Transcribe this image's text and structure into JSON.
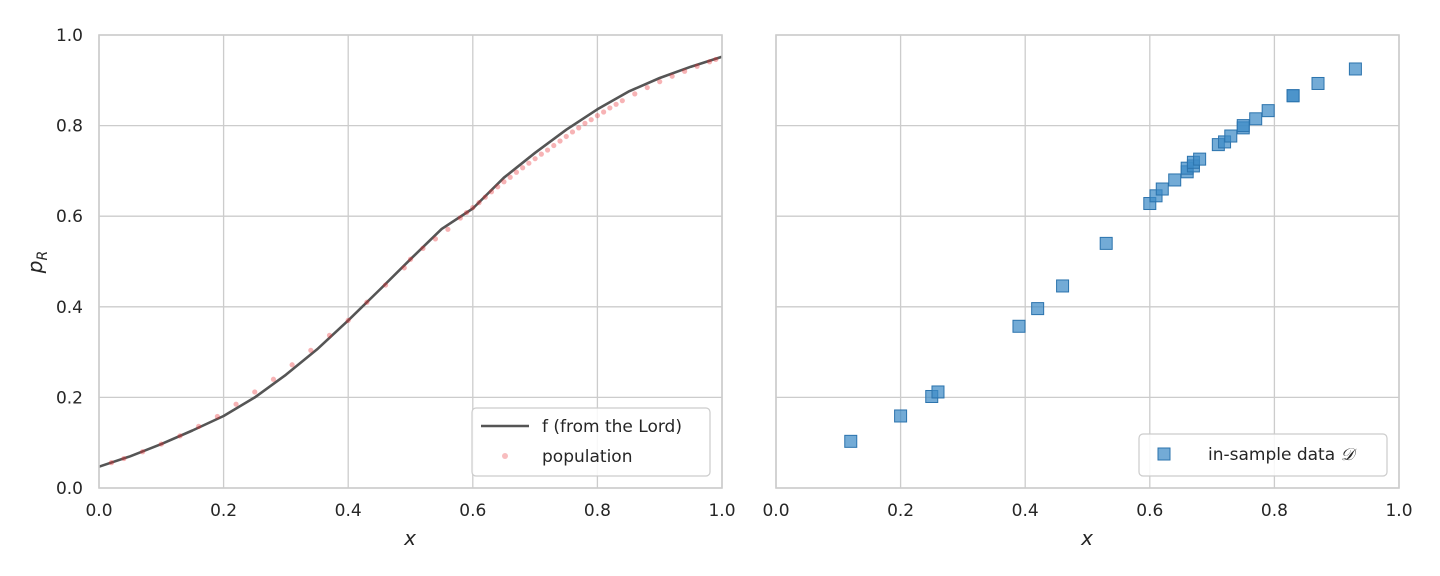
{
  "chart_data": [
    {
      "type": "line",
      "xlabel": "x",
      "ylabel": "p",
      "ylabel_sub": "R",
      "xlim": [
        0,
        1
      ],
      "ylim": [
        0,
        1
      ],
      "xticks": [
        "0.0",
        "0.2",
        "0.4",
        "0.6",
        "0.8",
        "1.0"
      ],
      "yticks": [
        "0.0",
        "0.2",
        "0.4",
        "0.6",
        "0.8",
        "1.0"
      ],
      "grid": true,
      "legend_position": "lower-right",
      "series": [
        {
          "name": "f (from the Lord)",
          "kind": "line",
          "color": "#555555",
          "x": [
            0,
            0.05,
            0.1,
            0.15,
            0.2,
            0.25,
            0.3,
            0.35,
            0.4,
            0.45,
            0.5,
            0.55,
            0.6,
            0.65,
            0.7,
            0.75,
            0.8,
            0.85,
            0.9,
            0.95,
            1.0
          ],
          "y": [
            0.047,
            0.07,
            0.097,
            0.127,
            0.159,
            0.2,
            0.25,
            0.306,
            0.37,
            0.437,
            0.505,
            0.572,
            0.617,
            0.685,
            0.74,
            0.791,
            0.836,
            0.875,
            0.905,
            0.93,
            0.952
          ]
        },
        {
          "name": "population",
          "kind": "scatter",
          "color": "#e8262a",
          "x": [
            0.02,
            0.04,
            0.07,
            0.1,
            0.13,
            0.16,
            0.19,
            0.22,
            0.25,
            0.28,
            0.31,
            0.34,
            0.37,
            0.4,
            0.43,
            0.46,
            0.49,
            0.5,
            0.52,
            0.54,
            0.56,
            0.58,
            0.59,
            0.6,
            0.61,
            0.62,
            0.63,
            0.64,
            0.65,
            0.66,
            0.67,
            0.68,
            0.69,
            0.7,
            0.71,
            0.72,
            0.73,
            0.74,
            0.75,
            0.76,
            0.77,
            0.78,
            0.79,
            0.8,
            0.81,
            0.82,
            0.83,
            0.84,
            0.86,
            0.88,
            0.9,
            0.92,
            0.94,
            0.96,
            0.98,
            0.99
          ],
          "y": [
            0.056,
            0.065,
            0.08,
            0.097,
            0.115,
            0.136,
            0.158,
            0.185,
            0.212,
            0.24,
            0.272,
            0.304,
            0.337,
            0.37,
            0.41,
            0.448,
            0.486,
            0.505,
            0.529,
            0.55,
            0.571,
            0.596,
            0.608,
            0.619,
            0.63,
            0.642,
            0.654,
            0.665,
            0.676,
            0.686,
            0.697,
            0.707,
            0.717,
            0.727,
            0.737,
            0.746,
            0.756,
            0.766,
            0.776,
            0.786,
            0.795,
            0.805,
            0.813,
            0.822,
            0.83,
            0.839,
            0.847,
            0.855,
            0.87,
            0.884,
            0.897,
            0.909,
            0.92,
            0.931,
            0.941,
            0.946
          ]
        }
      ]
    },
    {
      "type": "scatter",
      "xlabel": "x",
      "xlim": [
        0,
        1
      ],
      "ylim": [
        0,
        1
      ],
      "xticks": [
        "0.0",
        "0.2",
        "0.4",
        "0.6",
        "0.8",
        "1.0"
      ],
      "grid": true,
      "legend_position": "lower-right",
      "series": [
        {
          "name": "in-sample data",
          "name_symbol": "𝒟",
          "kind": "scatter",
          "color": "#3d8bc6",
          "x": [
            0.12,
            0.2,
            0.25,
            0.26,
            0.39,
            0.42,
            0.46,
            0.53,
            0.6,
            0.61,
            0.62,
            0.64,
            0.66,
            0.66,
            0.67,
            0.67,
            0.68,
            0.71,
            0.72,
            0.73,
            0.75,
            0.75,
            0.77,
            0.79,
            0.83,
            0.83,
            0.87,
            0.93
          ],
          "y": [
            0.103,
            0.159,
            0.202,
            0.212,
            0.357,
            0.396,
            0.446,
            0.54,
            0.628,
            0.645,
            0.66,
            0.68,
            0.698,
            0.706,
            0.711,
            0.719,
            0.726,
            0.758,
            0.764,
            0.777,
            0.795,
            0.8,
            0.815,
            0.833,
            0.866,
            0.866,
            0.893,
            0.925
          ]
        }
      ]
    }
  ]
}
